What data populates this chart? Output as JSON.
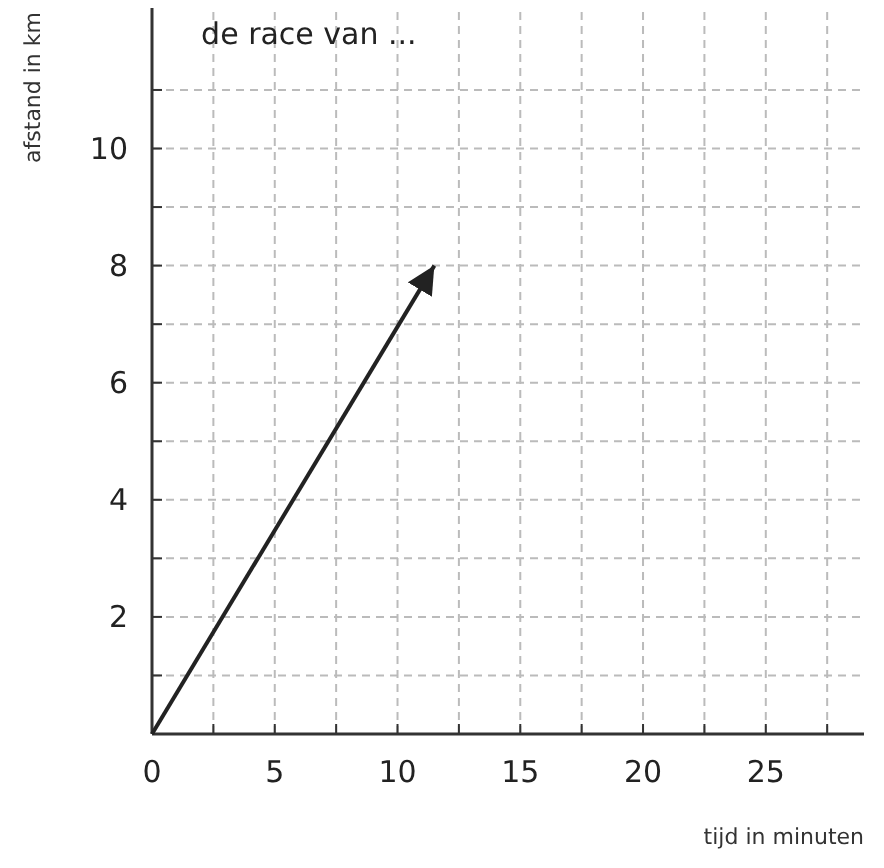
{
  "chart_data": {
    "type": "line",
    "title": "de race van ...",
    "xlabel": "tijd in minuten",
    "ylabel": "afstand in km",
    "x": [
      0,
      11.5
    ],
    "series": [
      {
        "color": "#222222",
        "values": [
          0,
          8
        ]
      }
    ],
    "xlim": [
      0,
      29
    ],
    "ylim": [
      0,
      12.4
    ],
    "xticks": [
      0,
      {
        "value": 2.5,
        "label": null
      },
      5,
      {
        "value": 7.5,
        "label": null
      },
      10,
      {
        "value": 12.5,
        "label": null
      },
      15,
      {
        "value": 17.5,
        "label": null
      },
      20,
      {
        "value": 22.5,
        "label": null
      },
      25,
      {
        "value": 27.5,
        "label": null
      }
    ],
    "yticks": [
      {
        "value": 1,
        "label": null
      },
      2,
      {
        "value": 3,
        "label": null
      },
      4,
      {
        "value": 5,
        "label": null
      },
      6,
      {
        "value": 7,
        "label": null
      },
      8,
      {
        "value": 9,
        "label": null
      },
      10,
      {
        "value": 11,
        "label": null
      }
    ],
    "grid": true,
    "marker": "none",
    "line_style": "solid"
  }
}
